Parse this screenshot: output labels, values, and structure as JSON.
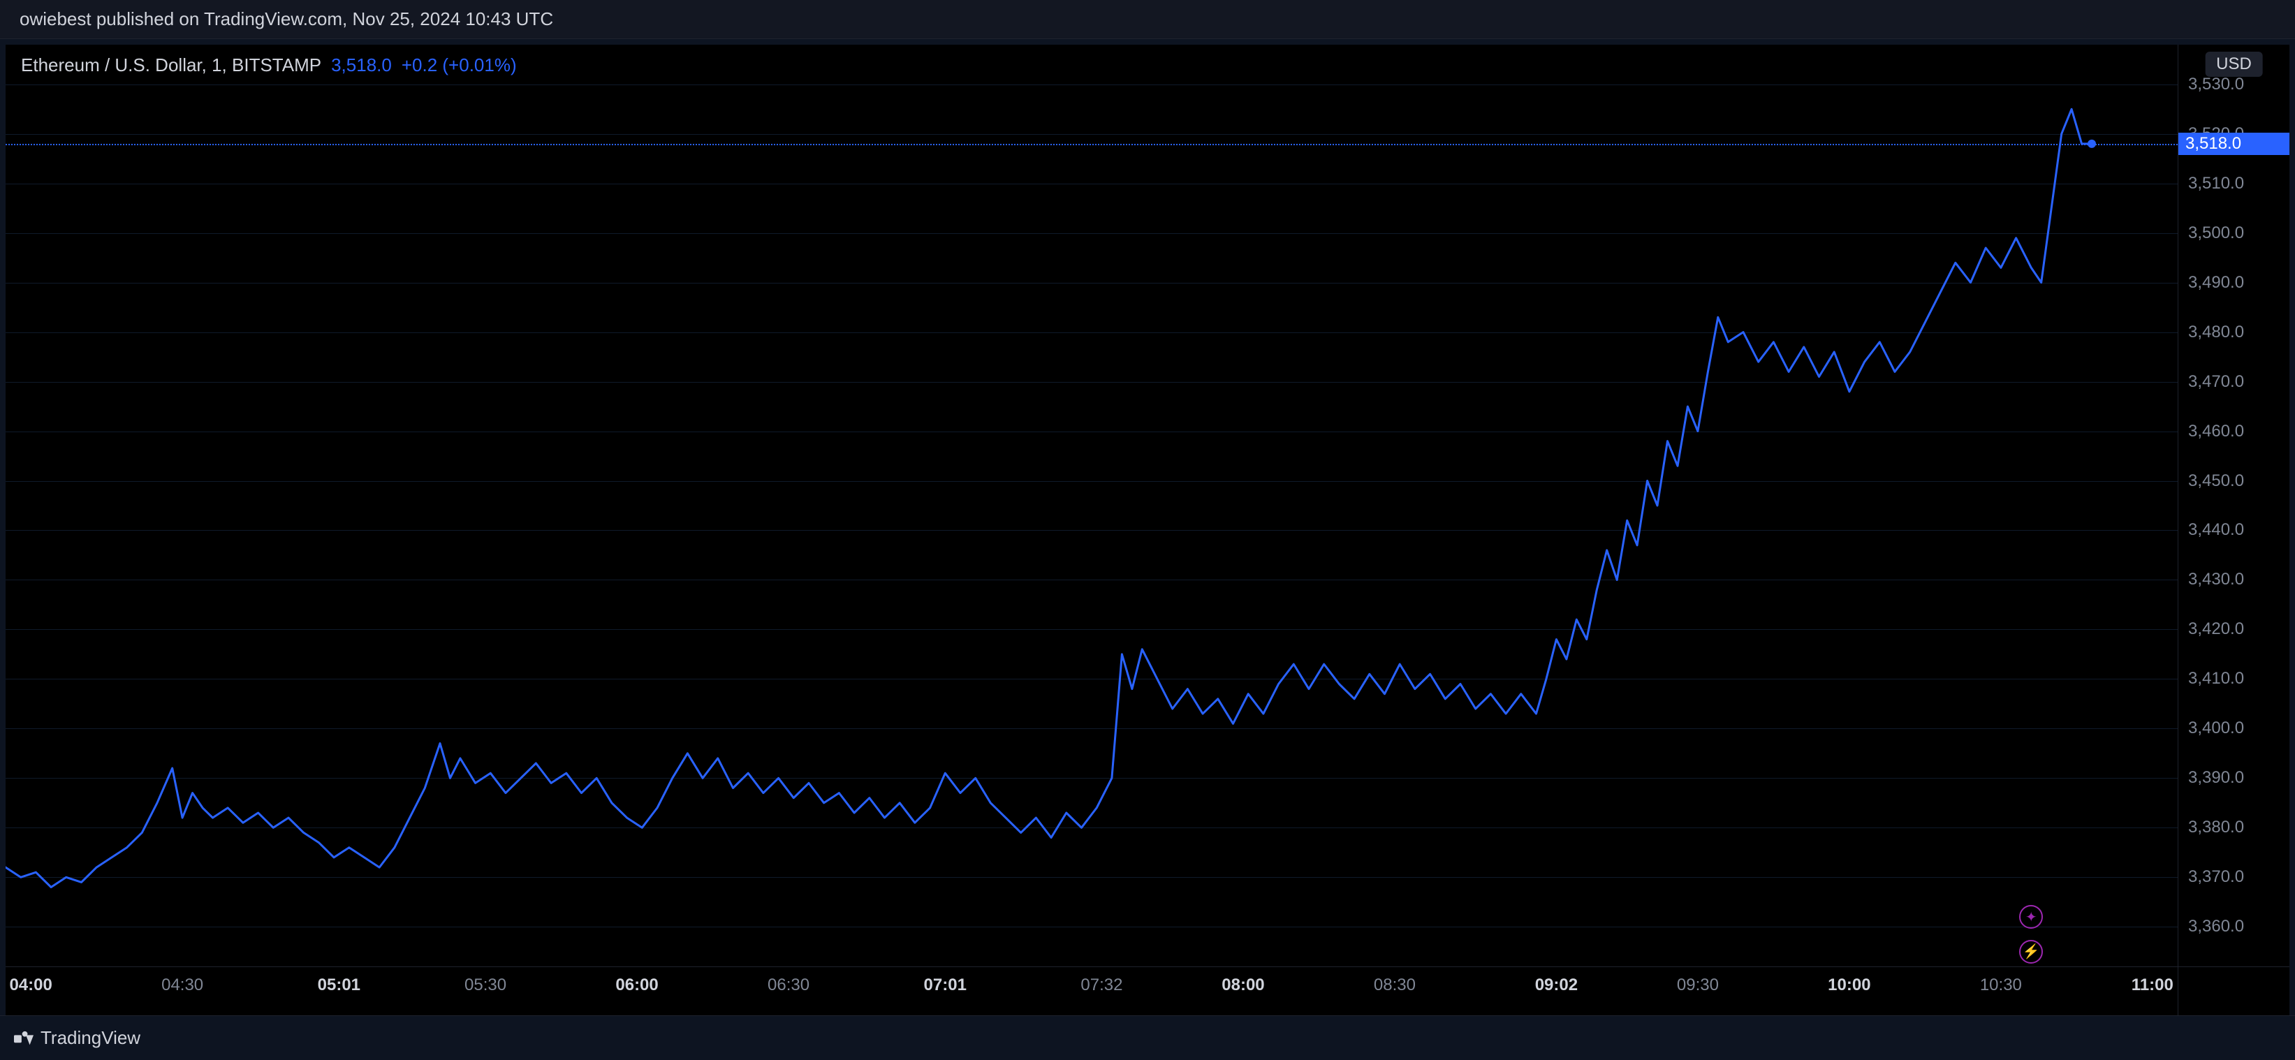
{
  "topbar": {
    "text": "owiebest published on TradingView.com, Nov 25, 2024 10:43 UTC"
  },
  "legend": {
    "symbol": "Ethereum / U.S. Dollar, 1, BITSTAMP",
    "price": "3,518.0",
    "change": "+0.2 (+0.01%)"
  },
  "y_axis": {
    "unit_label": "USD",
    "ticks": [
      {
        "v": 3530.0,
        "label": "3,530.0"
      },
      {
        "v": 3520.0,
        "label": "3,520.0"
      },
      {
        "v": 3510.0,
        "label": "3,510.0"
      },
      {
        "v": 3500.0,
        "label": "3,500.0"
      },
      {
        "v": 3490.0,
        "label": "3,490.0"
      },
      {
        "v": 3480.0,
        "label": "3,480.0"
      },
      {
        "v": 3470.0,
        "label": "3,470.0"
      },
      {
        "v": 3460.0,
        "label": "3,460.0"
      },
      {
        "v": 3450.0,
        "label": "3,450.0"
      },
      {
        "v": 3440.0,
        "label": "3,440.0"
      },
      {
        "v": 3430.0,
        "label": "3,430.0"
      },
      {
        "v": 3420.0,
        "label": "3,420.0"
      },
      {
        "v": 3410.0,
        "label": "3,410.0"
      },
      {
        "v": 3400.0,
        "label": "3,400.0"
      },
      {
        "v": 3390.0,
        "label": "3,390.0"
      },
      {
        "v": 3380.0,
        "label": "3,380.0"
      },
      {
        "v": 3370.0,
        "label": "3,370.0"
      },
      {
        "v": 3360.0,
        "label": "3,360.0"
      }
    ],
    "ylim": [
      3352,
      3538
    ],
    "current_price": {
      "v": 3518.0,
      "label": "3,518.0"
    }
  },
  "x_axis": {
    "t_min": 235,
    "t_max": 665,
    "ticks": [
      {
        "t": 240,
        "label": "04:00",
        "bold": true
      },
      {
        "t": 270,
        "label": "04:30",
        "bold": false
      },
      {
        "t": 301,
        "label": "05:01",
        "bold": true
      },
      {
        "t": 330,
        "label": "05:30",
        "bold": false
      },
      {
        "t": 360,
        "label": "06:00",
        "bold": true
      },
      {
        "t": 390,
        "label": "06:30",
        "bold": false
      },
      {
        "t": 421,
        "label": "07:01",
        "bold": true
      },
      {
        "t": 452,
        "label": "07:32",
        "bold": false
      },
      {
        "t": 480,
        "label": "08:00",
        "bold": true
      },
      {
        "t": 510,
        "label": "08:30",
        "bold": false
      },
      {
        "t": 542,
        "label": "09:02",
        "bold": true
      },
      {
        "t": 570,
        "label": "09:30",
        "bold": false
      },
      {
        "t": 600,
        "label": "10:00",
        "bold": true
      },
      {
        "t": 630,
        "label": "10:30",
        "bold": false
      },
      {
        "t": 660,
        "label": "11:00",
        "bold": true
      }
    ]
  },
  "chart": {
    "type": "line",
    "line_color": "#2962ff",
    "line_width": 3,
    "dot_color": "#2962ff",
    "background_color": "#000000",
    "grid_color": "#0f1a2a",
    "series": [
      {
        "t": 235,
        "v": 3372
      },
      {
        "t": 238,
        "v": 3370
      },
      {
        "t": 241,
        "v": 3371
      },
      {
        "t": 244,
        "v": 3368
      },
      {
        "t": 247,
        "v": 3370
      },
      {
        "t": 250,
        "v": 3369
      },
      {
        "t": 253,
        "v": 3372
      },
      {
        "t": 256,
        "v": 3374
      },
      {
        "t": 259,
        "v": 3376
      },
      {
        "t": 262,
        "v": 3379
      },
      {
        "t": 265,
        "v": 3385
      },
      {
        "t": 268,
        "v": 3392
      },
      {
        "t": 270,
        "v": 3382
      },
      {
        "t": 272,
        "v": 3387
      },
      {
        "t": 274,
        "v": 3384
      },
      {
        "t": 276,
        "v": 3382
      },
      {
        "t": 279,
        "v": 3384
      },
      {
        "t": 282,
        "v": 3381
      },
      {
        "t": 285,
        "v": 3383
      },
      {
        "t": 288,
        "v": 3380
      },
      {
        "t": 291,
        "v": 3382
      },
      {
        "t": 294,
        "v": 3379
      },
      {
        "t": 297,
        "v": 3377
      },
      {
        "t": 300,
        "v": 3374
      },
      {
        "t": 303,
        "v": 3376
      },
      {
        "t": 306,
        "v": 3374
      },
      {
        "t": 309,
        "v": 3372
      },
      {
        "t": 312,
        "v": 3376
      },
      {
        "t": 315,
        "v": 3382
      },
      {
        "t": 318,
        "v": 3388
      },
      {
        "t": 321,
        "v": 3397
      },
      {
        "t": 323,
        "v": 3390
      },
      {
        "t": 325,
        "v": 3394
      },
      {
        "t": 328,
        "v": 3389
      },
      {
        "t": 331,
        "v": 3391
      },
      {
        "t": 334,
        "v": 3387
      },
      {
        "t": 337,
        "v": 3390
      },
      {
        "t": 340,
        "v": 3393
      },
      {
        "t": 343,
        "v": 3389
      },
      {
        "t": 346,
        "v": 3391
      },
      {
        "t": 349,
        "v": 3387
      },
      {
        "t": 352,
        "v": 3390
      },
      {
        "t": 355,
        "v": 3385
      },
      {
        "t": 358,
        "v": 3382
      },
      {
        "t": 361,
        "v": 3380
      },
      {
        "t": 364,
        "v": 3384
      },
      {
        "t": 367,
        "v": 3390
      },
      {
        "t": 370,
        "v": 3395
      },
      {
        "t": 373,
        "v": 3390
      },
      {
        "t": 376,
        "v": 3394
      },
      {
        "t": 379,
        "v": 3388
      },
      {
        "t": 382,
        "v": 3391
      },
      {
        "t": 385,
        "v": 3387
      },
      {
        "t": 388,
        "v": 3390
      },
      {
        "t": 391,
        "v": 3386
      },
      {
        "t": 394,
        "v": 3389
      },
      {
        "t": 397,
        "v": 3385
      },
      {
        "t": 400,
        "v": 3387
      },
      {
        "t": 403,
        "v": 3383
      },
      {
        "t": 406,
        "v": 3386
      },
      {
        "t": 409,
        "v": 3382
      },
      {
        "t": 412,
        "v": 3385
      },
      {
        "t": 415,
        "v": 3381
      },
      {
        "t": 418,
        "v": 3384
      },
      {
        "t": 421,
        "v": 3391
      },
      {
        "t": 424,
        "v": 3387
      },
      {
        "t": 427,
        "v": 3390
      },
      {
        "t": 430,
        "v": 3385
      },
      {
        "t": 433,
        "v": 3382
      },
      {
        "t": 436,
        "v": 3379
      },
      {
        "t": 439,
        "v": 3382
      },
      {
        "t": 442,
        "v": 3378
      },
      {
        "t": 445,
        "v": 3383
      },
      {
        "t": 448,
        "v": 3380
      },
      {
        "t": 451,
        "v": 3384
      },
      {
        "t": 454,
        "v": 3390
      },
      {
        "t": 456,
        "v": 3415
      },
      {
        "t": 458,
        "v": 3408
      },
      {
        "t": 460,
        "v": 3416
      },
      {
        "t": 463,
        "v": 3410
      },
      {
        "t": 466,
        "v": 3404
      },
      {
        "t": 469,
        "v": 3408
      },
      {
        "t": 472,
        "v": 3403
      },
      {
        "t": 475,
        "v": 3406
      },
      {
        "t": 478,
        "v": 3401
      },
      {
        "t": 481,
        "v": 3407
      },
      {
        "t": 484,
        "v": 3403
      },
      {
        "t": 487,
        "v": 3409
      },
      {
        "t": 490,
        "v": 3413
      },
      {
        "t": 493,
        "v": 3408
      },
      {
        "t": 496,
        "v": 3413
      },
      {
        "t": 499,
        "v": 3409
      },
      {
        "t": 502,
        "v": 3406
      },
      {
        "t": 505,
        "v": 3411
      },
      {
        "t": 508,
        "v": 3407
      },
      {
        "t": 511,
        "v": 3413
      },
      {
        "t": 514,
        "v": 3408
      },
      {
        "t": 517,
        "v": 3411
      },
      {
        "t": 520,
        "v": 3406
      },
      {
        "t": 523,
        "v": 3409
      },
      {
        "t": 526,
        "v": 3404
      },
      {
        "t": 529,
        "v": 3407
      },
      {
        "t": 532,
        "v": 3403
      },
      {
        "t": 535,
        "v": 3407
      },
      {
        "t": 538,
        "v": 3403
      },
      {
        "t": 540,
        "v": 3410
      },
      {
        "t": 542,
        "v": 3418
      },
      {
        "t": 544,
        "v": 3414
      },
      {
        "t": 546,
        "v": 3422
      },
      {
        "t": 548,
        "v": 3418
      },
      {
        "t": 550,
        "v": 3428
      },
      {
        "t": 552,
        "v": 3436
      },
      {
        "t": 554,
        "v": 3430
      },
      {
        "t": 556,
        "v": 3442
      },
      {
        "t": 558,
        "v": 3437
      },
      {
        "t": 560,
        "v": 3450
      },
      {
        "t": 562,
        "v": 3445
      },
      {
        "t": 564,
        "v": 3458
      },
      {
        "t": 566,
        "v": 3453
      },
      {
        "t": 568,
        "v": 3465
      },
      {
        "t": 570,
        "v": 3460
      },
      {
        "t": 572,
        "v": 3472
      },
      {
        "t": 574,
        "v": 3483
      },
      {
        "t": 576,
        "v": 3478
      },
      {
        "t": 579,
        "v": 3480
      },
      {
        "t": 582,
        "v": 3474
      },
      {
        "t": 585,
        "v": 3478
      },
      {
        "t": 588,
        "v": 3472
      },
      {
        "t": 591,
        "v": 3477
      },
      {
        "t": 594,
        "v": 3471
      },
      {
        "t": 597,
        "v": 3476
      },
      {
        "t": 600,
        "v": 3468
      },
      {
        "t": 603,
        "v": 3474
      },
      {
        "t": 606,
        "v": 3478
      },
      {
        "t": 609,
        "v": 3472
      },
      {
        "t": 612,
        "v": 3476
      },
      {
        "t": 615,
        "v": 3482
      },
      {
        "t": 618,
        "v": 3488
      },
      {
        "t": 621,
        "v": 3494
      },
      {
        "t": 624,
        "v": 3490
      },
      {
        "t": 627,
        "v": 3497
      },
      {
        "t": 630,
        "v": 3493
      },
      {
        "t": 633,
        "v": 3499
      },
      {
        "t": 636,
        "v": 3493
      },
      {
        "t": 638,
        "v": 3490
      },
      {
        "t": 640,
        "v": 3505
      },
      {
        "t": 642,
        "v": 3520
      },
      {
        "t": 644,
        "v": 3525
      },
      {
        "t": 646,
        "v": 3518
      },
      {
        "t": 648,
        "v": 3518
      }
    ]
  },
  "footer": {
    "brand": "TradingView"
  },
  "colors": {
    "bg_outer": "#0d1421",
    "bg_chart": "#000000",
    "grid": "#0f1a2a",
    "text_primary": "#d1d4dc",
    "text_muted": "#808795",
    "accent": "#2962ff",
    "indicator_ring": "#9c27b0"
  }
}
